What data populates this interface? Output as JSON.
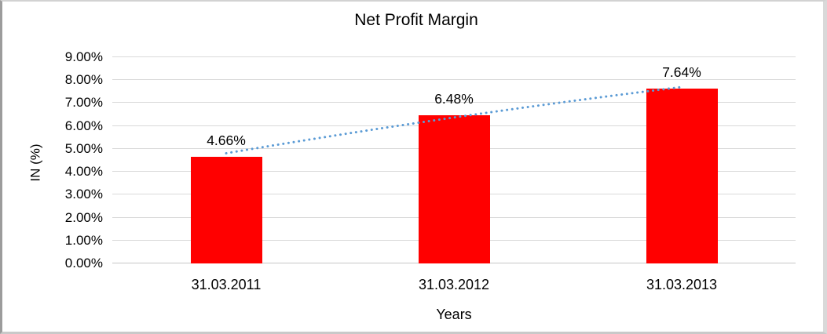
{
  "window": {
    "background": "#ffffff",
    "frame_border_color": "#c9c9c9"
  },
  "chart_data": {
    "type": "bar",
    "title": "Net Profit Margin",
    "xlabel": "Years",
    "ylabel": "IN (%)",
    "categories": [
      "31.03.2011",
      "31.03.2012",
      "31.03.2013"
    ],
    "values": [
      4.66,
      6.48,
      7.64
    ],
    "data_labels": [
      "4.66%",
      "6.48%",
      "7.64%"
    ],
    "series_name": "Net Profit Margin",
    "bar_color": "#ff0000",
    "ylim": [
      0,
      9
    ],
    "ytick_step": 1,
    "ytick_labels": [
      "0.00%",
      "1.00%",
      "2.00%",
      "3.00%",
      "4.00%",
      "5.00%",
      "6.00%",
      "7.00%",
      "8.00%",
      "9.00%"
    ],
    "grid": "horizontal",
    "gridline_color": "#d9d9d9",
    "axis_line_color": "#c6c6c6",
    "legend": "none",
    "trendline": {
      "style": "dotted",
      "color": "#5b9bd5",
      "points_pct": [
        [
          0,
          4.81
        ],
        [
          1,
          6.37
        ],
        [
          2,
          7.7
        ]
      ]
    }
  }
}
